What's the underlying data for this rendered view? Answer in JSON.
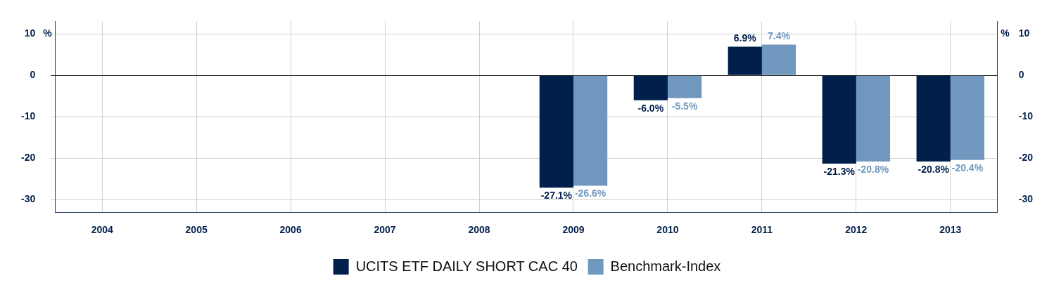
{
  "chart_data": {
    "type": "bar",
    "categories": [
      "2004",
      "2005",
      "2006",
      "2007",
      "2008",
      "2009",
      "2010",
      "2011",
      "2012",
      "2013"
    ],
    "series": [
      {
        "name": "UCITS ETF DAILY SHORT CAC 40",
        "color": "#001f4b",
        "values": [
          null,
          null,
          null,
          null,
          null,
          -27.1,
          -6.0,
          6.9,
          -21.3,
          -20.8
        ],
        "value_labels": [
          null,
          null,
          null,
          null,
          null,
          "-27.1%",
          "-6.0%",
          "6.9%",
          "-21.3%",
          "-20.8%"
        ]
      },
      {
        "name": "Benchmark-Index",
        "color": "#7098bf",
        "values": [
          null,
          null,
          null,
          null,
          null,
          -26.6,
          -5.5,
          7.4,
          -20.8,
          -20.4
        ],
        "value_labels": [
          null,
          null,
          null,
          null,
          null,
          "-26.6%",
          "-5.5%",
          "7.4%",
          "-20.8%",
          "-20.4%"
        ]
      }
    ],
    "ylabel": "%",
    "y2label": "%",
    "ylim": [
      -33,
      13
    ],
    "yticks": [
      -30,
      -20,
      -10,
      0,
      10
    ],
    "y2lim": [
      -33,
      13
    ],
    "y2ticks": [
      -30,
      -20,
      -10,
      0,
      10
    ],
    "grid": true,
    "legend": "bottom"
  }
}
